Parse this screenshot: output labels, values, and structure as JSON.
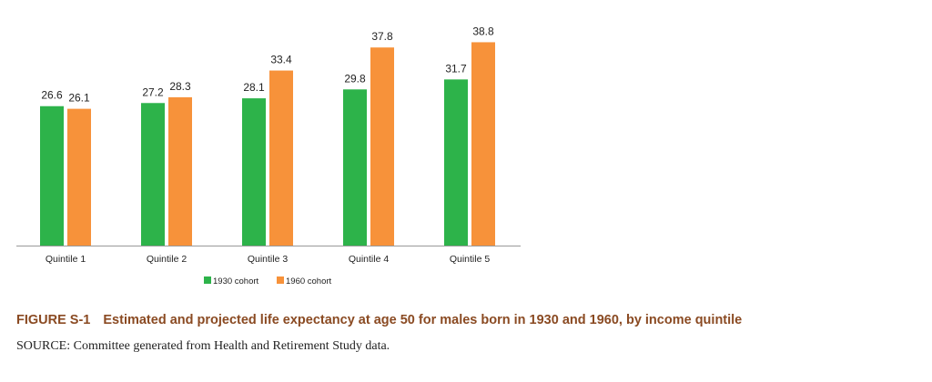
{
  "chart_data": {
    "type": "bar",
    "categories": [
      "Quintile 1",
      "Quintile 2",
      "Quintile 3",
      "Quintile 4",
      "Quintile 5"
    ],
    "series": [
      {
        "name": "1930 cohort",
        "values": [
          26.6,
          27.2,
          28.1,
          29.8,
          31.7
        ],
        "value_labels": [
          "26.6",
          "27.2",
          "28.1",
          "29.8",
          "31.7"
        ],
        "color": "#2db34a"
      },
      {
        "name": "1960 cohort",
        "values": [
          26.1,
          28.3,
          33.4,
          37.8,
          38.8
        ],
        "value_labels": [
          "26.1",
          "28.3",
          "33.4",
          "37.8",
          "38.8"
        ],
        "color": "#f7923a"
      }
    ],
    "ylim": [
      0,
      42
    ],
    "grid": false,
    "legend_position": "bottom-center"
  },
  "figure": {
    "number": "FIGURE S-1",
    "caption": "Estimated and projected life expectancy at age 50 for males born in 1930 and 1960, by income quintile",
    "source": "SOURCE: Committee generated from Health and Retirement Study data."
  }
}
